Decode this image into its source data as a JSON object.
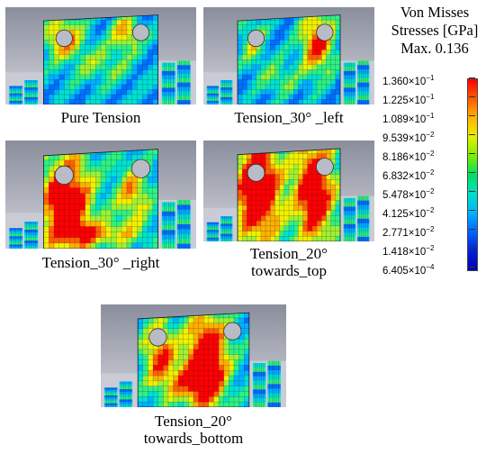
{
  "panels": [
    {
      "caption_lines": [
        "Pure Tension"
      ]
    },
    {
      "caption_lines": [
        "Tension_30° _left"
      ]
    },
    {
      "caption_lines": [
        "Tension_30° _right"
      ]
    },
    {
      "caption_lines": [
        "Tension_20°",
        "towards_top"
      ]
    },
    {
      "caption_lines": [
        "Tension_20°",
        "towards_bottom"
      ]
    }
  ],
  "legend": {
    "title_lines": [
      "Von Misses",
      "Stresses [GPa]",
      "Max. 0.136"
    ],
    "ticks": [
      {
        "mantissa": "1.360",
        "exp": "−1"
      },
      {
        "mantissa": "1.225",
        "exp": "−1"
      },
      {
        "mantissa": "1.089",
        "exp": "−1"
      },
      {
        "mantissa": "9.539",
        "exp": "−2"
      },
      {
        "mantissa": "8.186",
        "exp": "−2"
      },
      {
        "mantissa": "6.832",
        "exp": "−2"
      },
      {
        "mantissa": "5.478",
        "exp": "−2"
      },
      {
        "mantissa": "4.125",
        "exp": "−2"
      },
      {
        "mantissa": "2.771",
        "exp": "−2"
      },
      {
        "mantissa": "1.418",
        "exp": "−2"
      },
      {
        "mantissa": "6.405",
        "exp": "−4"
      }
    ],
    "colors": [
      "#ff0000",
      "#ff5a00",
      "#ffb400",
      "#e8f000",
      "#7cf000",
      "#00e060",
      "#00e0c8",
      "#00b4ff",
      "#0064ff",
      "#0020d8",
      "#0000b4"
    ]
  }
}
